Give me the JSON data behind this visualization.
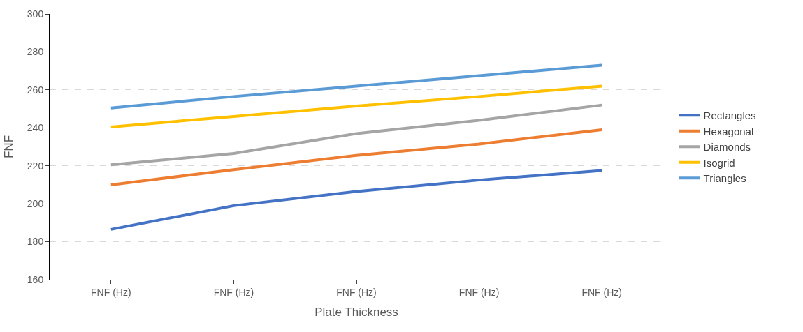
{
  "chart_data": {
    "type": "line",
    "xlabel": "Plate Thickness",
    "ylabel": "FNF",
    "categories": [
      "FNF (Hz)",
      "FNF (Hz)",
      "FNF (Hz)",
      "FNF (Hz)",
      "FNF (Hz)"
    ],
    "series": [
      {
        "name": "Rectangles",
        "color": "#4472c4",
        "values": [
          186.5,
          199,
          206.5,
          212.5,
          217.5
        ]
      },
      {
        "name": "Hexagonal",
        "color": "#ed7d31",
        "values": [
          210,
          218,
          225.5,
          231.5,
          239
        ]
      },
      {
        "name": "Diamonds",
        "color": "#a5a5a5",
        "values": [
          220.5,
          226.5,
          237,
          244,
          252
        ]
      },
      {
        "name": "Isogrid",
        "color": "#ffc000",
        "values": [
          240.5,
          246,
          251.5,
          256.5,
          262
        ]
      },
      {
        "name": "Triangles",
        "color": "#5b9bd5",
        "values": [
          250.5,
          256.5,
          262,
          267.5,
          273
        ]
      }
    ],
    "ylim": [
      160,
      300
    ],
    "yticks": [
      160,
      180,
      200,
      220,
      240,
      260,
      280,
      300
    ],
    "grid": "y",
    "legend": "right",
    "marker": "none",
    "line_style": "solid"
  }
}
